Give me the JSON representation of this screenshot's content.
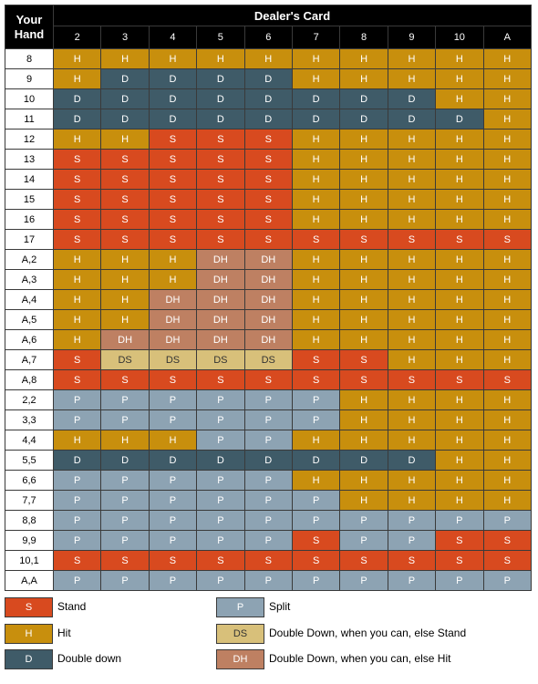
{
  "header": {
    "hand_title": "Your Hand",
    "dealer_title": "Dealer's Card",
    "dealer_cards": [
      "2",
      "3",
      "4",
      "5",
      "6",
      "7",
      "8",
      "9",
      "10",
      "A"
    ]
  },
  "rows": [
    {
      "hand": "8",
      "actions": [
        "H",
        "H",
        "H",
        "H",
        "H",
        "H",
        "H",
        "H",
        "H",
        "H"
      ]
    },
    {
      "hand": "9",
      "actions": [
        "H",
        "D",
        "D",
        "D",
        "D",
        "H",
        "H",
        "H",
        "H",
        "H"
      ]
    },
    {
      "hand": "10",
      "actions": [
        "D",
        "D",
        "D",
        "D",
        "D",
        "D",
        "D",
        "D",
        "H",
        "H"
      ]
    },
    {
      "hand": "11",
      "actions": [
        "D",
        "D",
        "D",
        "D",
        "D",
        "D",
        "D",
        "D",
        "D",
        "H"
      ]
    },
    {
      "hand": "12",
      "actions": [
        "H",
        "H",
        "S",
        "S",
        "S",
        "H",
        "H",
        "H",
        "H",
        "H"
      ]
    },
    {
      "hand": "13",
      "actions": [
        "S",
        "S",
        "S",
        "S",
        "S",
        "H",
        "H",
        "H",
        "H",
        "H"
      ]
    },
    {
      "hand": "14",
      "actions": [
        "S",
        "S",
        "S",
        "S",
        "S",
        "H",
        "H",
        "H",
        "H",
        "H"
      ]
    },
    {
      "hand": "15",
      "actions": [
        "S",
        "S",
        "S",
        "S",
        "S",
        "H",
        "H",
        "H",
        "H",
        "H"
      ]
    },
    {
      "hand": "16",
      "actions": [
        "S",
        "S",
        "S",
        "S",
        "S",
        "H",
        "H",
        "H",
        "H",
        "H"
      ]
    },
    {
      "hand": "17",
      "actions": [
        "S",
        "S",
        "S",
        "S",
        "S",
        "S",
        "S",
        "S",
        "S",
        "S"
      ]
    },
    {
      "hand": "A,2",
      "actions": [
        "H",
        "H",
        "H",
        "DH",
        "DH",
        "H",
        "H",
        "H",
        "H",
        "H"
      ]
    },
    {
      "hand": "A,3",
      "actions": [
        "H",
        "H",
        "H",
        "DH",
        "DH",
        "H",
        "H",
        "H",
        "H",
        "H"
      ]
    },
    {
      "hand": "A,4",
      "actions": [
        "H",
        "H",
        "DH",
        "DH",
        "DH",
        "H",
        "H",
        "H",
        "H",
        "H"
      ]
    },
    {
      "hand": "A,5",
      "actions": [
        "H",
        "H",
        "DH",
        "DH",
        "DH",
        "H",
        "H",
        "H",
        "H",
        "H"
      ]
    },
    {
      "hand": "A,6",
      "actions": [
        "H",
        "DH",
        "DH",
        "DH",
        "DH",
        "H",
        "H",
        "H",
        "H",
        "H"
      ]
    },
    {
      "hand": "A,7",
      "actions": [
        "S",
        "DS",
        "DS",
        "DS",
        "DS",
        "S",
        "S",
        "H",
        "H",
        "H"
      ]
    },
    {
      "hand": "A,8",
      "actions": [
        "S",
        "S",
        "S",
        "S",
        "S",
        "S",
        "S",
        "S",
        "S",
        "S"
      ]
    },
    {
      "hand": "2,2",
      "actions": [
        "P",
        "P",
        "P",
        "P",
        "P",
        "P",
        "H",
        "H",
        "H",
        "H"
      ]
    },
    {
      "hand": "3,3",
      "actions": [
        "P",
        "P",
        "P",
        "P",
        "P",
        "P",
        "H",
        "H",
        "H",
        "H"
      ]
    },
    {
      "hand": "4,4",
      "actions": [
        "H",
        "H",
        "H",
        "P",
        "P",
        "H",
        "H",
        "H",
        "H",
        "H"
      ]
    },
    {
      "hand": "5,5",
      "actions": [
        "D",
        "D",
        "D",
        "D",
        "D",
        "D",
        "D",
        "D",
        "H",
        "H"
      ]
    },
    {
      "hand": "6,6",
      "actions": [
        "P",
        "P",
        "P",
        "P",
        "P",
        "H",
        "H",
        "H",
        "H",
        "H"
      ]
    },
    {
      "hand": "7,7",
      "actions": [
        "P",
        "P",
        "P",
        "P",
        "P",
        "P",
        "H",
        "H",
        "H",
        "H"
      ]
    },
    {
      "hand": "8,8",
      "actions": [
        "P",
        "P",
        "P",
        "P",
        "P",
        "P",
        "P",
        "P",
        "P",
        "P"
      ]
    },
    {
      "hand": "9,9",
      "actions": [
        "P",
        "P",
        "P",
        "P",
        "P",
        "S",
        "P",
        "P",
        "S",
        "S"
      ]
    },
    {
      "hand": "10,1",
      "actions": [
        "S",
        "S",
        "S",
        "S",
        "S",
        "S",
        "S",
        "S",
        "S",
        "S"
      ]
    },
    {
      "hand": "A,A",
      "actions": [
        "P",
        "P",
        "P",
        "P",
        "P",
        "P",
        "P",
        "P",
        "P",
        "P"
      ]
    }
  ],
  "legend": [
    {
      "code": "S",
      "label": "Stand"
    },
    {
      "code": "H",
      "label": "Hit"
    },
    {
      "code": "D",
      "label": "Double down"
    },
    {
      "code": "P",
      "label": "Split"
    },
    {
      "code": "DS",
      "label": "Double Down, when you can, else Stand"
    },
    {
      "code": "DH",
      "label": "Double Down, when you can, else Hit"
    }
  ],
  "colors": {
    "S": "#d84a1f",
    "H": "#c88f0d",
    "D": "#3f5b68",
    "P": "#8da3b3",
    "DS": "#d8c07a",
    "DH": "#be8062",
    "header_bg": "#000000"
  }
}
